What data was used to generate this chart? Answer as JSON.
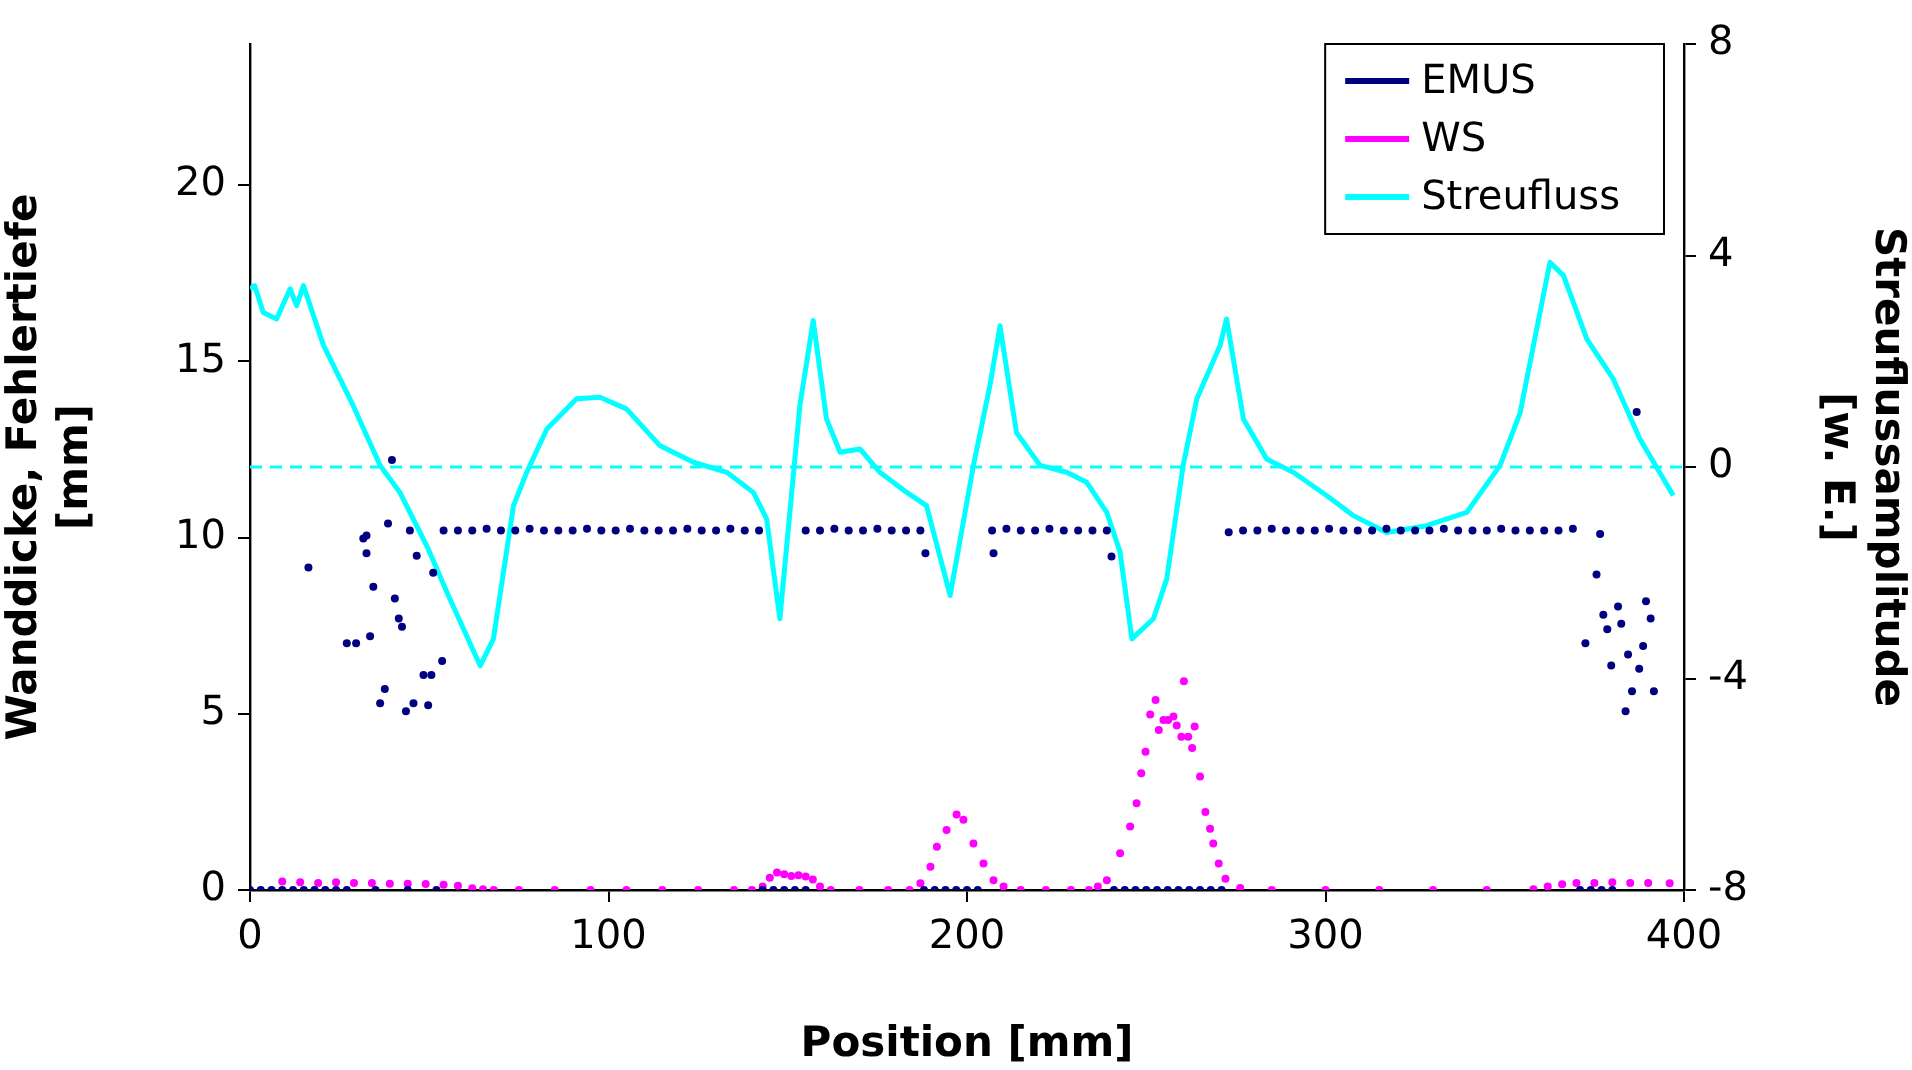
{
  "chart_data": {
    "type": "scatter",
    "xlabel": "Position [mm]",
    "ylabel": "Wanddicke, Fehlertiefe [mm]",
    "y2label": "Streuflussamplitude [w. E.]",
    "xlim": [
      0,
      400
    ],
    "xticks": [
      0,
      100,
      200,
      300,
      400
    ],
    "ylim": [
      0,
      24
    ],
    "yticks": [
      0,
      5,
      10,
      15,
      20
    ],
    "y2lim": [
      -8,
      8
    ],
    "y2ticks": [
      -8,
      -4,
      0,
      4,
      8
    ],
    "grid": false,
    "legend": "top right",
    "ref_lines": [
      {
        "axis": "y2",
        "value": 0,
        "color": "#00ffff",
        "line_style": "dashed"
      }
    ],
    "series": [
      {
        "name": "EMUS",
        "type": "scatter",
        "marker": "circle",
        "color": "#000080",
        "x": [
          0,
          3,
          6,
          9,
          12,
          15,
          16.3,
          18,
          21,
          24,
          27,
          27,
          29.6,
          31.6,
          32.5,
          32.5,
          33.5,
          34.4,
          35,
          36.3,
          37.6,
          38.5,
          39.6,
          40.4,
          41.5,
          42.4,
          43.5,
          44,
          44.6,
          45.6,
          46.5,
          48.4,
          49.7,
          50.6,
          51.1,
          52,
          53.6,
          54,
          58,
          62,
          66,
          70,
          74,
          78,
          82,
          86,
          90,
          94,
          98,
          102,
          106,
          110,
          114,
          118,
          122,
          126,
          130,
          134,
          138,
          142,
          143,
          146,
          149,
          152,
          155,
          155,
          159,
          163,
          167,
          171,
          175,
          179,
          183,
          187,
          188.4,
          188,
          191,
          194,
          197,
          200,
          203,
          207.4,
          207,
          211,
          215,
          219,
          223,
          227,
          231,
          235,
          239,
          240.3,
          241,
          244,
          247,
          250,
          253,
          256,
          259,
          262,
          265,
          268,
          271,
          273,
          277,
          281,
          285,
          289,
          293,
          297,
          301,
          305,
          309,
          313,
          317,
          321,
          325,
          329,
          333,
          337,
          341,
          345,
          349,
          353,
          357,
          361,
          365,
          369,
          372.5,
          375.6,
          376.6,
          377.5,
          378.6,
          379.7,
          381.6,
          382.5,
          383.7,
          384.4,
          385.5,
          386.8,
          387.5,
          388.6,
          389.4,
          390.7,
          391.6,
          371,
          374,
          377,
          380
        ],
        "values": [
          0,
          0,
          0,
          0,
          0,
          0,
          9.15,
          0,
          0,
          0,
          7.0,
          0,
          7.0,
          9.97,
          10.06,
          9.55,
          7.2,
          8.6,
          0,
          5.3,
          5.7,
          10.4,
          12.2,
          8.27,
          7.7,
          7.47,
          5.07,
          0,
          10.2,
          5.3,
          9.48,
          6.1,
          5.24,
          6.1,
          9.0,
          0,
          6.5,
          10.2,
          10.2,
          10.2,
          10.25,
          10.2,
          10.2,
          10.25,
          10.2,
          10.2,
          10.2,
          10.25,
          10.2,
          10.2,
          10.25,
          10.2,
          10.2,
          10.2,
          10.25,
          10.2,
          10.2,
          10.25,
          10.2,
          10.2,
          0,
          0,
          0,
          0,
          0,
          10.2,
          10.2,
          10.25,
          10.2,
          10.2,
          10.25,
          10.2,
          10.2,
          10.2,
          9.55,
          0,
          0,
          0,
          0,
          0,
          0,
          9.55,
          10.2,
          10.25,
          10.2,
          10.2,
          10.25,
          10.2,
          10.2,
          10.2,
          10.2,
          9.46,
          0,
          0,
          0,
          0,
          0,
          0,
          0,
          0,
          0,
          0,
          0,
          10.15,
          10.2,
          10.2,
          10.25,
          10.2,
          10.2,
          10.2,
          10.25,
          10.2,
          10.2,
          10.2,
          10.25,
          10.2,
          10.2,
          10.2,
          10.25,
          10.2,
          10.2,
          10.2,
          10.25,
          10.2,
          10.2,
          10.2,
          10.2,
          10.25,
          7.0,
          8.95,
          10.1,
          7.81,
          7.4,
          6.37,
          8.04,
          7.55,
          5.07,
          6.68,
          5.64,
          13.56,
          6.28,
          6.92,
          8.19,
          7.7,
          5.64,
          0,
          0,
          0,
          0
        ]
      },
      {
        "name": "WS",
        "type": "scatter",
        "marker": "circle",
        "color": "#ff00ff",
        "x": [
          9,
          14,
          19,
          24,
          29,
          34,
          39,
          44,
          49,
          54,
          58,
          62,
          65,
          68,
          75,
          85,
          95,
          105,
          115,
          125,
          135,
          140,
          143,
          145,
          147,
          149,
          151,
          153,
          155,
          157,
          159,
          162,
          170,
          178,
          184,
          187,
          189.8,
          191.6,
          194.3,
          197.1,
          199,
          201.8,
          204.6,
          207.4,
          210.2,
          215,
          222,
          229,
          234,
          236.5,
          239,
          242.7,
          245.5,
          247.3,
          248.6,
          249.8,
          251.1,
          252.6,
          253.5,
          254.8,
          256.1,
          257.6,
          258.5,
          259.8,
          260.5,
          261.7,
          262.8,
          263.5,
          265,
          266.5,
          267.8,
          268.7,
          270.2,
          272.1,
          276.2,
          285,
          300,
          315,
          330,
          345,
          358,
          362,
          366,
          370,
          375,
          380,
          385,
          390,
          396
        ],
        "values": [
          0.24,
          0.22,
          0.2,
          0.22,
          0.2,
          0.2,
          0.18,
          0.18,
          0.17,
          0.15,
          0.12,
          0.05,
          0.02,
          0,
          0,
          0,
          0,
          0,
          0,
          0,
          0,
          0,
          0.1,
          0.35,
          0.5,
          0.45,
          0.4,
          0.42,
          0.38,
          0.3,
          0.1,
          0,
          0,
          0,
          0,
          0.19,
          0.66,
          1.23,
          1.7,
          2.14,
          1.99,
          1.32,
          0.75,
          0.28,
          0.1,
          0,
          0,
          0,
          0,
          0.1,
          0.28,
          1.04,
          1.8,
          2.46,
          3.31,
          3.92,
          4.98,
          5.39,
          4.54,
          4.82,
          4.82,
          4.92,
          4.67,
          4.35,
          5.92,
          4.35,
          4.03,
          4.64,
          3.22,
          2.21,
          1.74,
          1.32,
          0.75,
          0.32,
          0.06,
          0,
          0,
          0,
          0,
          0,
          0.02,
          0.1,
          0.16,
          0.2,
          0.2,
          0.22,
          0.2,
          0.2,
          0.19
        ]
      },
      {
        "name": "Streufluss",
        "type": "line",
        "axis": "y2",
        "color": "#00ffff",
        "x": [
          0,
          1.3,
          3.7,
          7.4,
          11.2,
          13,
          14.9,
          20.5,
          28.8,
          36.3,
          41.8,
          49.3,
          55.8,
          64.2,
          67.9,
          73.5,
          77.2,
          82.8,
          91.1,
          97.6,
          105,
          114.4,
          123.7,
          133,
          140.4,
          144.1,
          147.8,
          153.4,
          157.1,
          160.8,
          164.6,
          170.2,
          175.7,
          183.2,
          188.7,
          195.3,
          201.8,
          206.4,
          209.2,
          213.8,
          220.4,
          227.8,
          233.4,
          239,
          242.7,
          246,
          252,
          255.7,
          260.3,
          264.1,
          270.6,
          272.4,
          277.1,
          283.6,
          291,
          300.3,
          307.8,
          317,
          328.2,
          339.4,
          348.7,
          354.3,
          362.6,
          366.4,
          372.9,
          380.3,
          387.7,
          397
        ],
        "values": [
          3.37,
          3.43,
          2.92,
          2.8,
          3.37,
          3.05,
          3.43,
          2.3,
          1.16,
          0.03,
          -0.48,
          -1.49,
          -2.5,
          -3.76,
          -3.25,
          -0.73,
          -0.1,
          0.72,
          1.29,
          1.32,
          1.1,
          0.4,
          0.09,
          -0.1,
          -0.48,
          -0.98,
          -2.87,
          1.17,
          2.77,
          0.91,
          0.28,
          0.34,
          -0.1,
          -0.48,
          -0.73,
          -2.43,
          0.03,
          1.54,
          2.67,
          0.65,
          0.03,
          -0.1,
          -0.29,
          -0.86,
          -1.61,
          -3.25,
          -2.87,
          -2.12,
          0.03,
          1.29,
          2.3,
          2.8,
          0.91,
          0.15,
          -0.1,
          -0.54,
          -0.92,
          -1.24,
          -1.11,
          -0.86,
          0.03,
          1.03,
          3.87,
          3.62,
          2.42,
          1.66,
          0.53,
          -0.54
        ]
      }
    ]
  }
}
